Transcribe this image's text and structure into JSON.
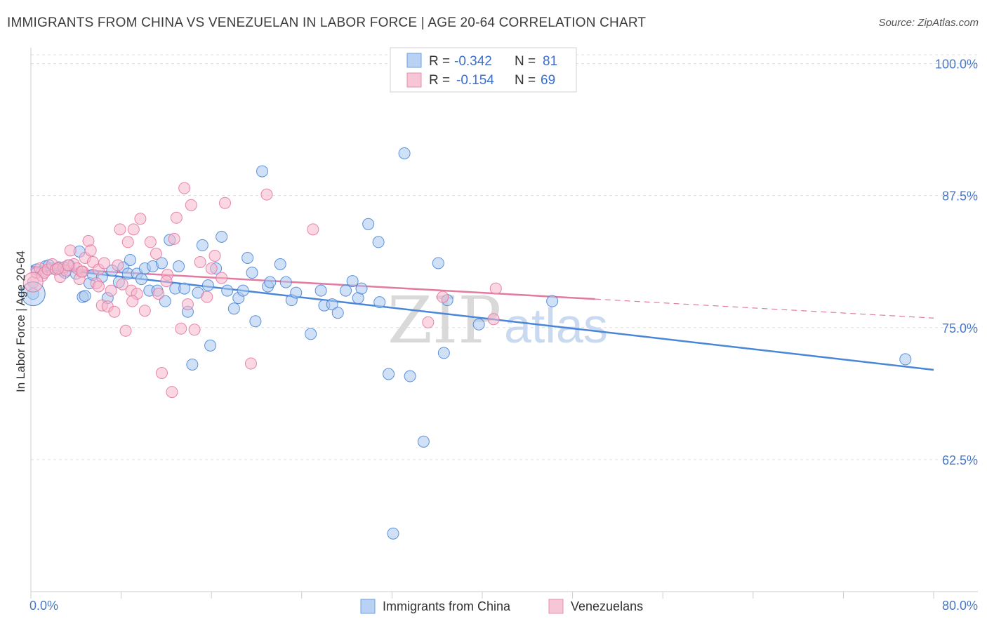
{
  "title": "IMMIGRANTS FROM CHINA VS VENEZUELAN IN LABOR FORCE | AGE 20-64 CORRELATION CHART",
  "source": "Source: ZipAtlas.com",
  "watermark": {
    "zip": "ZIP",
    "atlas": "atlas"
  },
  "legend": {
    "r_label": "R =",
    "n_label": "N =",
    "rows": [
      {
        "r": "-0.342",
        "n": "81",
        "color": "#6fa0e0",
        "fill": "#b9d1f3"
      },
      {
        "r": "-0.154",
        "n": "69",
        "color": "#e58fb0",
        "fill": "#f7c6d6"
      }
    ]
  },
  "chart_data": {
    "type": "scatter",
    "title": "IMMIGRANTS FROM CHINA VS VENEZUELAN IN LABOR FORCE | AGE 20-64 CORRELATION CHART",
    "ylabel": "In Labor Force | Age 20-64",
    "xlabel": "",
    "xlim": [
      0,
      80
    ],
    "ylim": [
      50,
      101.5
    ],
    "x_tick_labels": [
      "0.0%",
      "80.0%"
    ],
    "y_ticks": [
      62.5,
      75.0,
      87.5,
      100.0
    ],
    "y_tick_labels": [
      "62.5%",
      "75.0%",
      "87.5%",
      "100.0%"
    ],
    "grid": "horizontal dashed",
    "series": [
      {
        "name": "Immigrants from China",
        "color": "#4a86d8",
        "fill": "#a9c8f0",
        "trend": {
          "x0": 0,
          "y0": 80.8,
          "x1": 80,
          "y1": 71.0,
          "dashed_from": null
        },
        "points": [
          [
            0.2,
            78.2
          ],
          [
            0.5,
            80.5
          ],
          [
            1.0,
            80.3
          ],
          [
            1.3,
            80.8
          ],
          [
            1.8,
            80.6
          ],
          [
            2.5,
            80.7
          ],
          [
            2.8,
            80.4
          ],
          [
            3.0,
            80.2
          ],
          [
            3.4,
            80.9
          ],
          [
            4.0,
            80.1
          ],
          [
            4.3,
            82.2
          ],
          [
            4.6,
            77.9
          ],
          [
            4.8,
            78.0
          ],
          [
            5.2,
            79.2
          ],
          [
            5.5,
            80.0
          ],
          [
            6.3,
            79.8
          ],
          [
            6.8,
            77.8
          ],
          [
            7.2,
            80.4
          ],
          [
            7.8,
            79.3
          ],
          [
            8.2,
            80.7
          ],
          [
            8.6,
            80.1
          ],
          [
            8.8,
            81.4
          ],
          [
            9.4,
            80.1
          ],
          [
            9.8,
            79.6
          ],
          [
            10.1,
            80.6
          ],
          [
            10.5,
            78.5
          ],
          [
            10.8,
            80.8
          ],
          [
            11.2,
            78.5
          ],
          [
            11.6,
            81.1
          ],
          [
            11.9,
            77.5
          ],
          [
            12.3,
            83.3
          ],
          [
            12.8,
            78.7
          ],
          [
            13.1,
            80.8
          ],
          [
            13.6,
            78.7
          ],
          [
            13.9,
            76.5
          ],
          [
            14.3,
            71.5
          ],
          [
            14.8,
            78.3
          ],
          [
            15.2,
            82.8
          ],
          [
            15.7,
            79.0
          ],
          [
            15.9,
            73.3
          ],
          [
            16.4,
            80.6
          ],
          [
            16.9,
            83.6
          ],
          [
            17.4,
            78.5
          ],
          [
            18.0,
            76.8
          ],
          [
            18.4,
            77.8
          ],
          [
            18.8,
            78.5
          ],
          [
            19.2,
            81.6
          ],
          [
            19.6,
            80.2
          ],
          [
            19.9,
            75.6
          ],
          [
            20.5,
            89.8
          ],
          [
            21.0,
            78.9
          ],
          [
            21.2,
            79.3
          ],
          [
            22.1,
            81.0
          ],
          [
            22.6,
            79.3
          ],
          [
            23.1,
            77.6
          ],
          [
            23.5,
            78.3
          ],
          [
            24.8,
            74.4
          ],
          [
            25.7,
            78.5
          ],
          [
            26.0,
            77.1
          ],
          [
            26.7,
            77.2
          ],
          [
            27.2,
            76.4
          ],
          [
            27.9,
            78.5
          ],
          [
            28.5,
            79.4
          ],
          [
            29.0,
            77.8
          ],
          [
            29.3,
            78.7
          ],
          [
            29.9,
            84.8
          ],
          [
            30.8,
            83.1
          ],
          [
            30.9,
            77.4
          ],
          [
            31.7,
            70.6
          ],
          [
            33.1,
            91.5
          ],
          [
            33.6,
            70.4
          ],
          [
            34.8,
            64.2
          ],
          [
            36.1,
            81.1
          ],
          [
            36.6,
            72.6
          ],
          [
            36.9,
            77.6
          ],
          [
            39.7,
            75.3
          ],
          [
            46.2,
            77.5
          ],
          [
            32.1,
            55.5
          ],
          [
            77.5,
            72.0
          ],
          [
            1.6,
            80.9
          ],
          [
            2.2,
            80.5
          ]
        ]
      },
      {
        "name": "Venezuelans",
        "color": "#e27aa2",
        "fill": "#f5b6cb",
        "trend": {
          "x0": 0,
          "y0": 80.7,
          "x1": 80,
          "y1": 75.9,
          "dashed_from": 50
        },
        "points": [
          [
            0.2,
            79.3
          ],
          [
            0.5,
            80.2
          ],
          [
            0.8,
            80.6
          ],
          [
            1.0,
            79.9
          ],
          [
            1.2,
            80.2
          ],
          [
            1.5,
            80.5
          ],
          [
            1.9,
            81.0
          ],
          [
            2.2,
            80.5
          ],
          [
            2.6,
            79.8
          ],
          [
            2.9,
            80.7
          ],
          [
            3.1,
            80.4
          ],
          [
            3.5,
            82.3
          ],
          [
            3.8,
            81.0
          ],
          [
            4.1,
            80.6
          ],
          [
            4.3,
            79.6
          ],
          [
            4.6,
            80.3
          ],
          [
            4.8,
            81.6
          ],
          [
            5.1,
            83.2
          ],
          [
            5.3,
            82.3
          ],
          [
            5.5,
            81.2
          ],
          [
            5.8,
            79.2
          ],
          [
            6.0,
            80.5
          ],
          [
            6.3,
            77.1
          ],
          [
            6.5,
            81.1
          ],
          [
            6.8,
            77.0
          ],
          [
            7.1,
            78.5
          ],
          [
            7.4,
            76.5
          ],
          [
            7.7,
            80.9
          ],
          [
            7.9,
            84.3
          ],
          [
            8.1,
            79.1
          ],
          [
            8.4,
            74.7
          ],
          [
            8.6,
            83.1
          ],
          [
            8.9,
            78.5
          ],
          [
            9.1,
            84.3
          ],
          [
            9.4,
            78.2
          ],
          [
            9.7,
            85.3
          ],
          [
            10.1,
            76.6
          ],
          [
            10.6,
            83.1
          ],
          [
            11.1,
            82.0
          ],
          [
            11.3,
            78.2
          ],
          [
            11.6,
            70.7
          ],
          [
            12.1,
            80.0
          ],
          [
            12.5,
            68.9
          ],
          [
            12.7,
            83.4
          ],
          [
            12.9,
            85.4
          ],
          [
            13.3,
            74.9
          ],
          [
            13.6,
            88.2
          ],
          [
            13.9,
            77.2
          ],
          [
            14.2,
            86.6
          ],
          [
            14.5,
            74.8
          ],
          [
            15.0,
            81.2
          ],
          [
            15.6,
            77.9
          ],
          [
            16.3,
            81.8
          ],
          [
            16.9,
            79.7
          ],
          [
            17.2,
            86.8
          ],
          [
            19.5,
            71.6
          ],
          [
            20.9,
            87.6
          ],
          [
            25.0,
            84.3
          ],
          [
            35.2,
            75.5
          ],
          [
            36.5,
            77.9
          ],
          [
            41.0,
            75.8
          ],
          [
            41.2,
            78.7
          ],
          [
            2.4,
            80.6
          ],
          [
            3.3,
            80.9
          ],
          [
            4.5,
            80.3
          ],
          [
            6.0,
            78.9
          ],
          [
            9.0,
            77.5
          ],
          [
            12.0,
            79.4
          ],
          [
            16.0,
            80.6
          ]
        ]
      }
    ]
  }
}
